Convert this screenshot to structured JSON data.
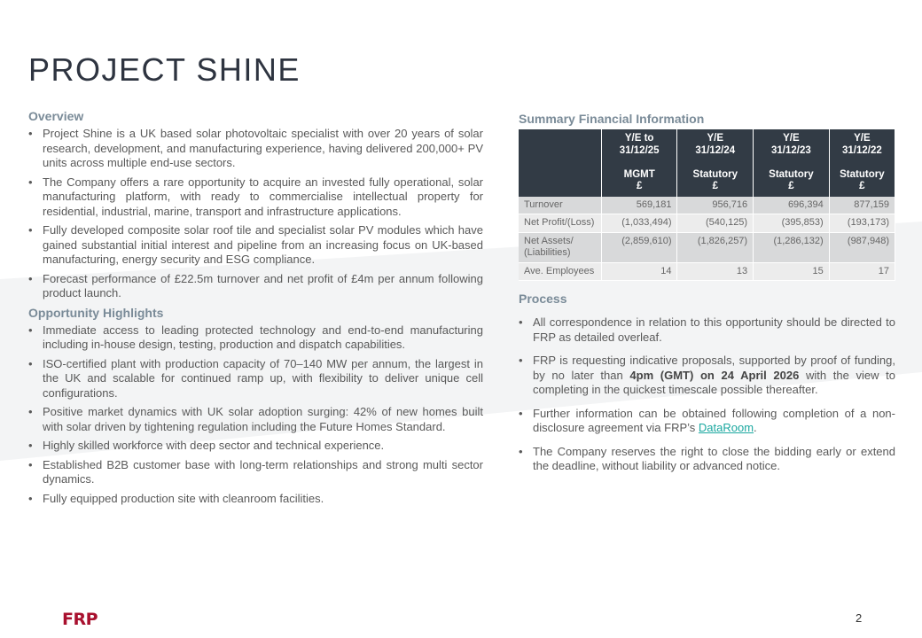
{
  "title": "PROJECT SHINE",
  "overview": {
    "heading": "Overview",
    "items": [
      "Project Shine is a UK based solar photovoltaic specialist with over 20 years of solar research, development, and manufacturing experience, having delivered 200,000+ PV units across multiple end-use sectors.",
      "The Company offers a rare opportunity to acquire an invested fully operational, solar manufacturing platform, with ready to commercialise intellectual property for residential, industrial, marine, transport and infrastructure applications.",
      "Fully developed composite solar roof tile and specialist solar PV modules which have gained substantial initial interest and pipeline from an increasing focus on UK-based manufacturing, energy security and ESG compliance.",
      "Forecast performance of £22.5m turnover and net profit of £4m per annum following product launch."
    ]
  },
  "highlights": {
    "heading": "Opportunity Highlights",
    "items": [
      "Immediate access to leading protected technology and end-to-end manufacturing including in-house design, testing, production and dispatch capabilities.",
      "ISO-certified plant with production capacity of 70–140 MW per annum, the largest in the UK and scalable for continued ramp up, with flexibility to deliver unique cell configurations.",
      "Positive market dynamics with UK solar adoption surging: 42% of new homes built with solar driven by tightening regulation including the Future Homes Standard.",
      "Highly skilled workforce with deep sector and technical experience.",
      "Established B2B customer base with long-term relationships and strong multi sector dynamics.",
      "Fully equipped production site with cleanroom facilities."
    ]
  },
  "financials": {
    "heading": "Summary Financial Information",
    "columns": [
      {
        "l1": "Y/E to",
        "l2": "31/12/25",
        "l3": "MGMT",
        "l4": "£"
      },
      {
        "l1": "Y/E",
        "l2": "31/12/24",
        "l3": "Statutory",
        "l4": "£"
      },
      {
        "l1": "Y/E",
        "l2": "31/12/23",
        "l3": "Statutory",
        "l4": "£"
      },
      {
        "l1": "Y/E",
        "l2": "31/12/22",
        "l3": "Statutory",
        "l4": "£"
      }
    ],
    "rows": [
      {
        "label": "Turnover",
        "values": [
          "569,181",
          "956,716",
          "696,394",
          "877,159"
        ]
      },
      {
        "label": "Net Profit/(Loss)",
        "values": [
          "(1,033,494)",
          "(540,125)",
          "(395,853)",
          "(193,173)"
        ]
      },
      {
        "label": "Net Assets/ (Liabilities)",
        "values": [
          "(2,859,610)",
          "(1,826,257)",
          "(1,286,132)",
          "(987,948)"
        ]
      },
      {
        "label": "Ave. Employees",
        "values": [
          "14",
          "13",
          "15",
          "17"
        ]
      }
    ]
  },
  "process": {
    "heading": "Process",
    "item1": "All correspondence in relation to this opportunity should be directed to FRP as detailed overleaf.",
    "item2_a": "FRP is requesting indicative proposals, supported by proof of funding, by no later than ",
    "item2_bold": "4pm (GMT) on 24 April 2026",
    "item2_b": " with the view to completing in the quickest timescale possible thereafter.",
    "item3_a": "Further information can be obtained following completion of a non-disclosure agreement via FRP’s ",
    "item3_link": "DataRoom",
    "item3_b": ".",
    "item4": "The Company reserves the right to close the bidding early or extend the deadline, without liability or advanced notice."
  },
  "footer": {
    "logo": "FRP",
    "page": "2"
  },
  "colors": {
    "brand": "#a8102e",
    "heading": "#7a8b98",
    "table_header": "#323b45",
    "link": "#1ba8a0"
  }
}
